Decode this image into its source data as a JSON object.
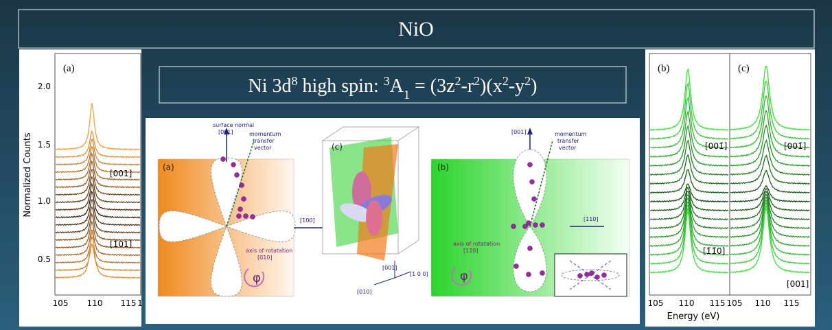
{
  "title": "NiO",
  "formula": {
    "parts": [
      {
        "text": "Ni 3d"
      },
      {
        "text": "8",
        "style": "sup"
      },
      {
        "text": " high spin: "
      },
      {
        "text": "3",
        "style": "sup"
      },
      {
        "text": "A"
      },
      {
        "text": "1",
        "style": "sub"
      },
      {
        "text": " = (3z"
      },
      {
        "text": "2",
        "style": "sup"
      },
      {
        "text": "-r"
      },
      {
        "text": "2",
        "style": "sup"
      },
      {
        "text": ")(x"
      },
      {
        "text": "2",
        "style": "sup"
      },
      {
        "text": "-y"
      },
      {
        "text": "2",
        "style": "sup"
      },
      {
        "text": ")"
      }
    ]
  },
  "left_panel": {
    "label": "(a)",
    "y_axis_title": "Normalized Counts",
    "y_ticks": [
      "2.0",
      "1.5",
      "1.0",
      "0.5"
    ],
    "x_ticks": [
      "105",
      "110",
      "115",
      "1"
    ],
    "annotations": [
      "[001]",
      "[1̄01]"
    ]
  },
  "right_panel": {
    "labels": [
      "(b)",
      "(c)"
    ],
    "x_ticks": [
      "105",
      "110",
      "115",
      "105",
      "110",
      "115"
    ],
    "x_axis_title": "Energy (eV)",
    "annotations": [
      "[001̄]",
      "[001̄]",
      "[1̄1̄0]",
      "[001]"
    ]
  },
  "diagram": {
    "panel_a": {
      "label": "(a)",
      "surface_normal": [
        "surface normal",
        "[001]"
      ],
      "momentum": [
        "momentum",
        "transfer",
        "vector"
      ],
      "axis_label": [
        "axis of rotatation",
        "[010]"
      ],
      "phi": "φ",
      "direction": "[100]"
    },
    "panel_c": {
      "label": "(c)",
      "axes": [
        "[001]",
        "[1 0 0]",
        "[010]"
      ]
    },
    "panel_b": {
      "label": "(b)",
      "up_dir": "[001]",
      "momentum": [
        "momentum",
        "transfer",
        "vector"
      ],
      "direction": "[110]",
      "axis_label": [
        "axis of rotatation",
        "[11̄0]"
      ],
      "phi": "φ"
    }
  }
}
